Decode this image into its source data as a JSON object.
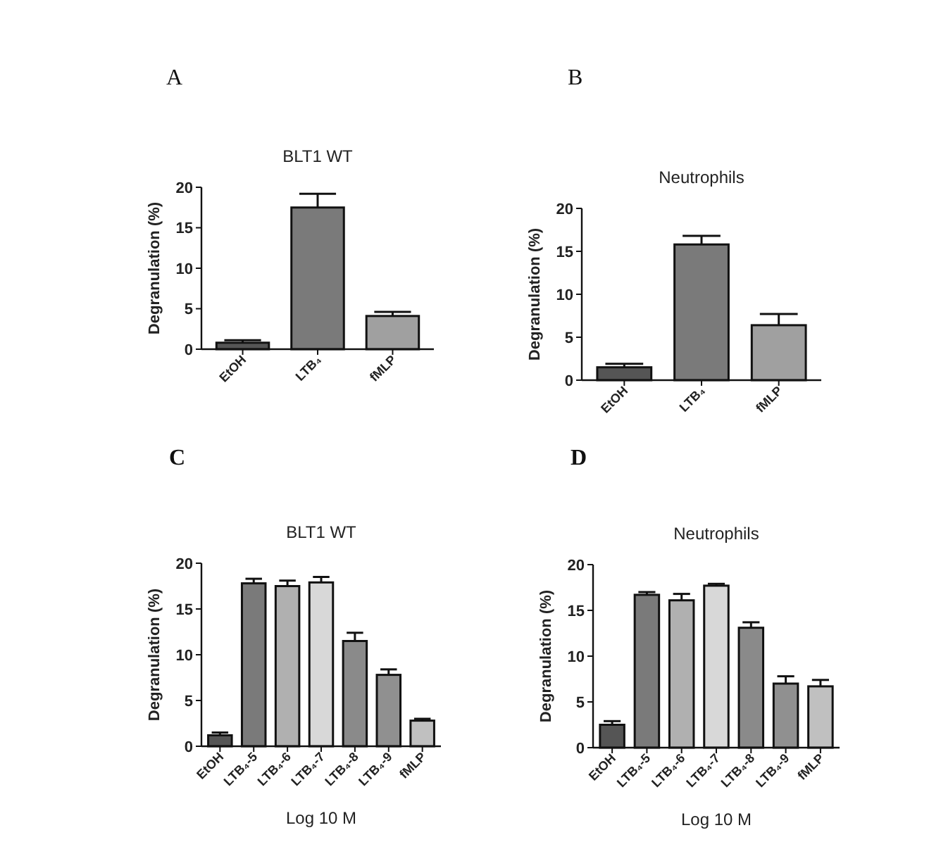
{
  "chart_data": [
    {
      "type": "bar",
      "title": "BLT1 WT",
      "annotations": [
        "A"
      ],
      "ylabel": "Degranulation (%)",
      "categories": [
        "EtOH",
        "LTB₄",
        "fMLP"
      ],
      "values": [
        0.8,
        17.5,
        4.1
      ],
      "errors": [
        [
          0.8,
          1.1
        ],
        [
          17.5,
          19.2
        ],
        [
          4.1,
          4.6
        ]
      ],
      "colors": [
        "#555555",
        "#7a7a7a",
        "#a0a0a0"
      ],
      "ylim": [
        0,
        20
      ],
      "yticks": [
        0,
        5,
        10,
        15,
        20
      ],
      "grid": false
    },
    {
      "type": "bar",
      "title": "Neutrophils",
      "annotations": [
        "B"
      ],
      "ylabel": "Degranulation (%)",
      "categories": [
        "EtOH",
        "LTB₄",
        "fMLP"
      ],
      "values": [
        1.5,
        15.8,
        6.4
      ],
      "errors": [
        [
          1.5,
          1.9
        ],
        [
          15.8,
          16.8
        ],
        [
          6.4,
          7.7
        ]
      ],
      "colors": [
        "#555555",
        "#7a7a7a",
        "#a0a0a0"
      ],
      "ylim": [
        0,
        20
      ],
      "yticks": [
        0,
        5,
        10,
        15,
        20
      ],
      "grid": false
    },
    {
      "type": "bar",
      "title": "BLT1 WT",
      "annotations": [
        "C"
      ],
      "ylabel": "Degranulation (%)",
      "xlabel": "Log 10 M",
      "categories": [
        "EtOH",
        "LTB₄-5",
        "LTB₄-6",
        "LTB₄-7",
        "LTB₄-8",
        "LTB₄-9",
        "fMLP"
      ],
      "values": [
        1.2,
        17.8,
        17.5,
        17.9,
        11.5,
        7.8,
        2.8
      ],
      "errors": [
        [
          1.2,
          1.5
        ],
        [
          17.8,
          18.3
        ],
        [
          17.5,
          18.1
        ],
        [
          17.9,
          18.5
        ],
        [
          11.5,
          12.4
        ],
        [
          7.8,
          8.4
        ],
        [
          2.8,
          3.0
        ]
      ],
      "colors": [
        "#555555",
        "#7a7a7a",
        "#b0b0b0",
        "#d8d8d8",
        "#8a8a8a",
        "#909090",
        "#c0c0c0"
      ],
      "ylim": [
        0,
        20
      ],
      "yticks": [
        0,
        5,
        10,
        15,
        20
      ],
      "grid": false
    },
    {
      "type": "bar",
      "title": "Neutrophils",
      "annotations": [
        "D"
      ],
      "ylabel": "Degranulation (%)",
      "xlabel": "Log 10 M",
      "categories": [
        "EtOH",
        "LTB₄-5",
        "LTB₄-6",
        "LTB₄-7",
        "LTB₄-8",
        "LTB₄-9",
        "fMLP"
      ],
      "values": [
        2.5,
        16.7,
        16.1,
        17.7,
        13.1,
        7.0,
        6.7
      ],
      "errors": [
        [
          2.5,
          2.9
        ],
        [
          16.7,
          17.0
        ],
        [
          16.1,
          16.8
        ],
        [
          17.7,
          17.9
        ],
        [
          13.1,
          13.7
        ],
        [
          7.0,
          7.8
        ],
        [
          6.7,
          7.4
        ]
      ],
      "colors": [
        "#555555",
        "#7a7a7a",
        "#b0b0b0",
        "#d8d8d8",
        "#8a8a8a",
        "#909090",
        "#c0c0c0"
      ],
      "ylim": [
        0,
        20
      ],
      "yticks": [
        0,
        5,
        10,
        15,
        20
      ],
      "grid": false
    }
  ]
}
